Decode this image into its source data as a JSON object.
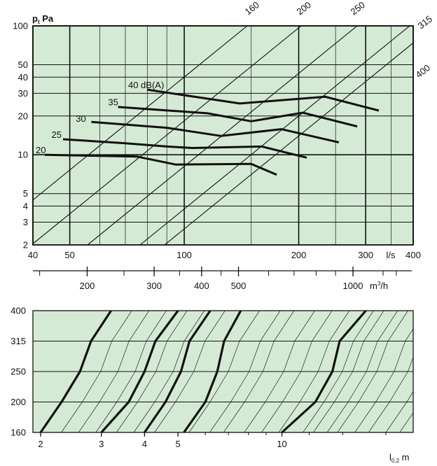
{
  "chart_data": [
    {
      "type": "line",
      "y_axis": {
        "label": "p",
        "label_sub": "t",
        "unit": "Pa",
        "scale": "log",
        "range": [
          2,
          100
        ],
        "ticks": [
          2,
          3,
          4,
          5,
          10,
          20,
          30,
          40,
          50,
          100
        ],
        "tick_labels": [
          "2",
          "3",
          "4",
          "5",
          "10",
          "20",
          "30",
          "40",
          "50",
          "100"
        ]
      },
      "x_axis": {
        "scale": "log",
        "range": [
          40,
          400
        ],
        "ticks": [
          40,
          50,
          100,
          200,
          300,
          400
        ],
        "tick_labels": [
          "40",
          "50",
          "100",
          "200",
          "300",
          "400"
        ],
        "unit": "l/s",
        "unit_at": 340
      },
      "x2_axis": {
        "unit": "m",
        "unit_sup": "3",
        "unit_rest": "/h",
        "ticks": [
          200,
          300,
          400,
          500,
          1000
        ],
        "tick_labels": [
          "200",
          "300",
          "400",
          "500",
          "1000"
        ]
      },
      "duct_lines": {
        "labels": [
          "160",
          "200",
          "250",
          "315",
          "400"
        ],
        "note": "diagonal reference lines for duct sizes"
      },
      "grid": true,
      "series": [
        {
          "name": "20",
          "x": [
            43,
            60,
            75,
            95,
            150,
            175
          ],
          "y": [
            10,
            9.8,
            9.7,
            8.4,
            8.5,
            7.0
          ]
        },
        {
          "name": "25",
          "x": [
            48,
            70,
            90,
            105,
            160,
            210
          ],
          "y": [
            13.2,
            12.3,
            11.6,
            11.3,
            11.6,
            9.5
          ]
        },
        {
          "name": "30",
          "x": [
            57,
            90,
            125,
            180,
            255
          ],
          "y": [
            18.0,
            16.2,
            14.0,
            15.8,
            12.5
          ]
        },
        {
          "name": "35",
          "x": [
            67,
            115,
            150,
            205,
            285
          ],
          "y": [
            23.5,
            21.0,
            18.2,
            21.2,
            16.6
          ]
        },
        {
          "name": "40 dB(A)",
          "x": [
            80,
            140,
            235,
            325
          ],
          "y": [
            32,
            25,
            28.2,
            22.0
          ]
        }
      ],
      "series_label_anchors": [
        {
          "text": "20",
          "x": 40,
          "y": 10.8
        },
        {
          "text": "25",
          "x": 44,
          "y": 14.2
        },
        {
          "text": "30",
          "x": 51,
          "y": 19.0
        },
        {
          "text": "35",
          "x": 62,
          "y": 25.5
        },
        {
          "text": "40 dB(A)",
          "x": 70,
          "y": 34.5
        }
      ]
    },
    {
      "type": "line",
      "y_axis": {
        "ticks": [
          160,
          200,
          250,
          315,
          400
        ],
        "tick_labels": [
          "160",
          "200",
          "250",
          "315",
          "400"
        ]
      },
      "x_axis": {
        "label": "l",
        "label_sub": "0,2",
        "unit": "m",
        "scale": "log",
        "range": [
          1.9,
          24
        ],
        "ticks": [
          2,
          3,
          4,
          5,
          10
        ],
        "tick_labels": [
          "2",
          "3",
          "4",
          "5",
          "10"
        ]
      },
      "grid": true,
      "series": [
        {
          "name": "",
          "x": [
            2.0,
            2.3,
            2.6,
            2.8,
            2.8,
            3.2
          ],
          "y": [
            160,
            200,
            250,
            315,
            315,
            400
          ]
        },
        {
          "name": "",
          "x": [
            3.0,
            3.6,
            4.0,
            4.3,
            4.3,
            5.0
          ],
          "y": [
            160,
            200,
            250,
            315,
            315,
            400
          ]
        },
        {
          "name": "",
          "x": [
            4.0,
            4.6,
            5.1,
            5.4,
            5.4,
            6.2
          ],
          "y": [
            160,
            200,
            250,
            315,
            315,
            400
          ]
        },
        {
          "name": "",
          "x": [
            5.2,
            6.0,
            6.5,
            6.8,
            6.8,
            7.6
          ],
          "y": [
            160,
            200,
            250,
            315,
            315,
            400
          ]
        },
        {
          "name": "",
          "x": [
            10.0,
            12.5,
            14.0,
            14.7,
            14.7,
            17.5
          ],
          "y": [
            160,
            200,
            250,
            315,
            315,
            400
          ]
        }
      ]
    }
  ]
}
